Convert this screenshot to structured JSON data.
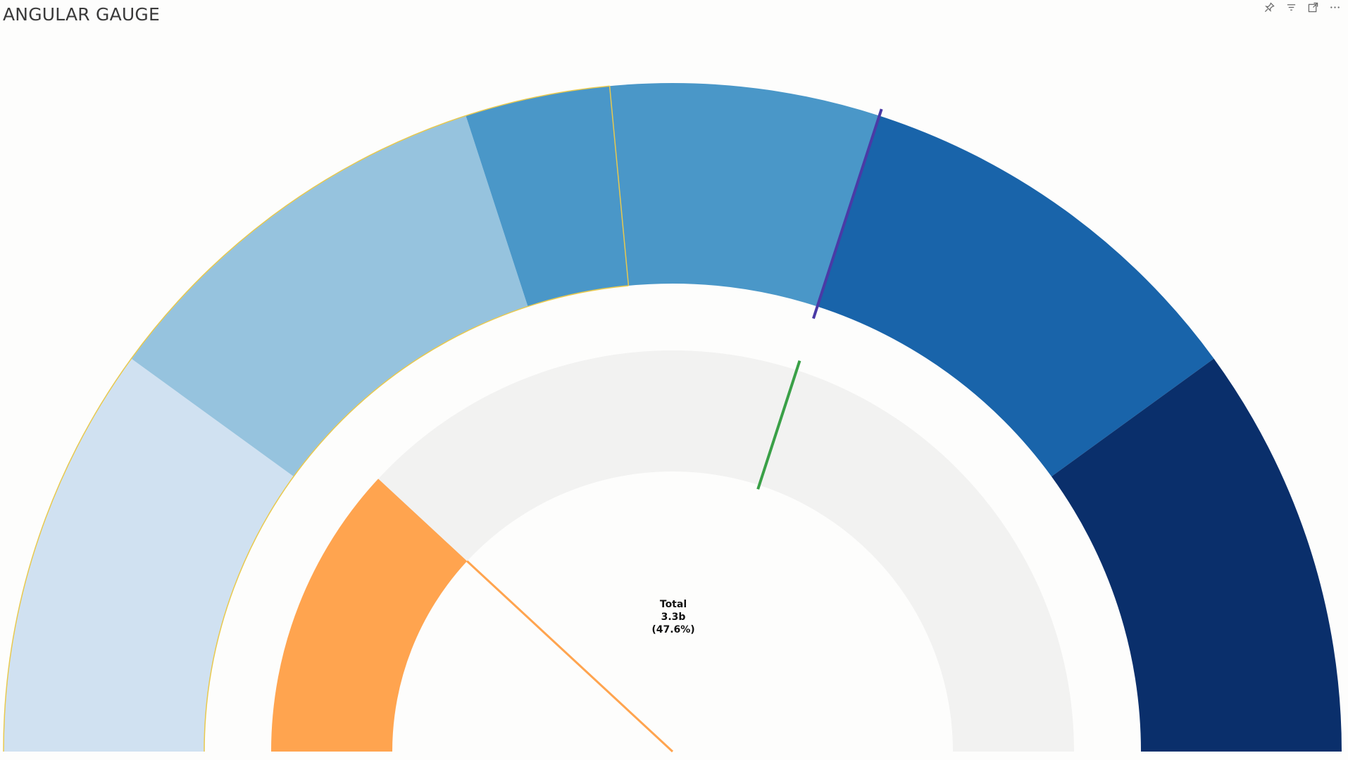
{
  "visual": {
    "title": "ANGULAR GAUGE",
    "header_icons": [
      "pin-icon",
      "filter-icon",
      "focus-mode-icon",
      "more-options-icon"
    ]
  },
  "chart_data": {
    "type": "angular-gauge",
    "range": [
      0,
      100
    ],
    "unit": "%",
    "bands": [
      {
        "from": 0,
        "to": 20,
        "color": "#d0e1f1"
      },
      {
        "from": 20,
        "to": 40,
        "color": "#96c3de"
      },
      {
        "from": 40,
        "to": 60,
        "color": "#4a97c8"
      },
      {
        "from": 60,
        "to": 80,
        "color": "#1964aa"
      },
      {
        "from": 80,
        "to": 100,
        "color": "#0a2f6b"
      }
    ],
    "band_dividers": [
      {
        "value": 47,
        "color": "#e8c94e"
      }
    ],
    "outer_marker": {
      "value": 60,
      "color": "#4a3aa6"
    },
    "value_track_color": "#f2f2f1",
    "value": 23.8,
    "value_color": "#ffa44f",
    "target": {
      "value": 60,
      "color": "#3aa047"
    },
    "center": {
      "label": "Total",
      "value": "3.3b",
      "percent": "(47.6%)"
    }
  }
}
